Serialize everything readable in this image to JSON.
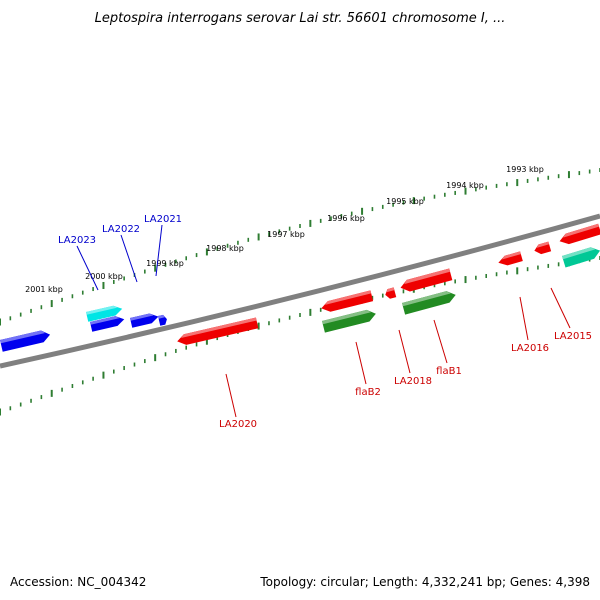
{
  "title": "Leptospira interrogans serovar Lai str. 56601 chromosome I, ...",
  "footer": {
    "accession": "Accession: NC_004342",
    "summary": "Topology: circular; Length: 4,332,241 bp; Genes: 4,398"
  },
  "colors": {
    "backbone": "#808080",
    "tick": "#2e7d32",
    "label_blue": "#0000cc",
    "label_red": "#cc0000",
    "gene_blue": "#0000ee",
    "gene_cyan": "#00e5e5",
    "gene_red": "#ee0000",
    "gene_green": "#228b22",
    "gene_teal": "#00c896"
  },
  "ruler_labels": [
    "1993 kbp",
    "1994 kbp",
    "1995 kbp",
    "1996 kbp",
    "1997 kbp",
    "1998 kbp",
    "1999 kbp",
    "2000 kbp",
    "2001 kbp"
  ],
  "gene_labels": [
    {
      "id": "LA2023",
      "text": "LA2023",
      "color": "blue"
    },
    {
      "id": "LA2022",
      "text": "LA2022",
      "color": "blue"
    },
    {
      "id": "LA2021",
      "text": "LA2021",
      "color": "blue"
    },
    {
      "id": "LA2020",
      "text": "LA2020",
      "color": "red"
    },
    {
      "id": "flaB2",
      "text": "flaB2",
      "color": "red"
    },
    {
      "id": "LA2018",
      "text": "LA2018",
      "color": "red"
    },
    {
      "id": "flaB1",
      "text": "flaB1",
      "color": "red"
    },
    {
      "id": "LA2016",
      "text": "LA2016",
      "color": "red"
    },
    {
      "id": "LA2015",
      "text": "LA2015",
      "color": "red"
    }
  ]
}
